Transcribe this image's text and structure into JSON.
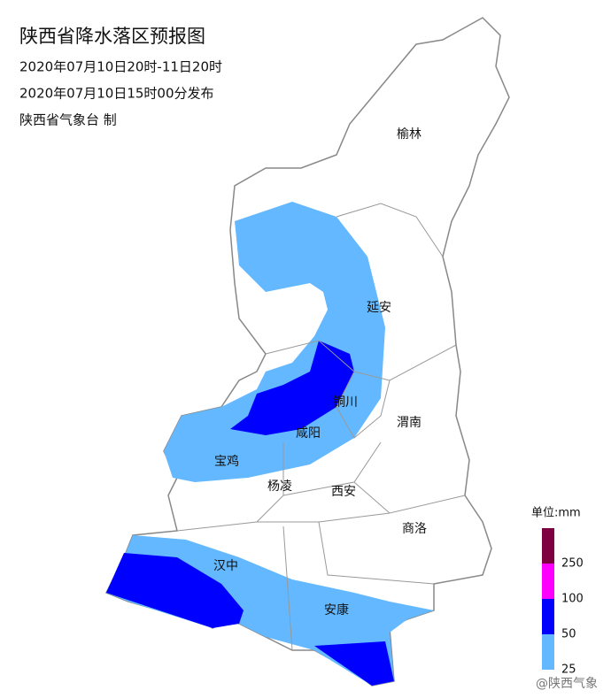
{
  "header": {
    "title": "陕西省降水落区预报图",
    "lines": [
      "2020年07月10日20时-11日20时",
      "2020年07月10日15时00分发布",
      "陕西省气象台 制"
    ]
  },
  "cities": [
    "榆林",
    "延安",
    "铜川",
    "渭南",
    "咸阳",
    "宝鸡",
    "杨凌",
    "西安",
    "商洛",
    "汉中",
    "安康"
  ],
  "legend": {
    "unit": "单位:mm",
    "ticks": [
      25,
      50,
      100,
      250
    ],
    "colors": [
      "#63b8ff",
      "#0000fe",
      "#fe00fe",
      "#7f0040"
    ]
  },
  "watermark": "@陕西气象"
}
